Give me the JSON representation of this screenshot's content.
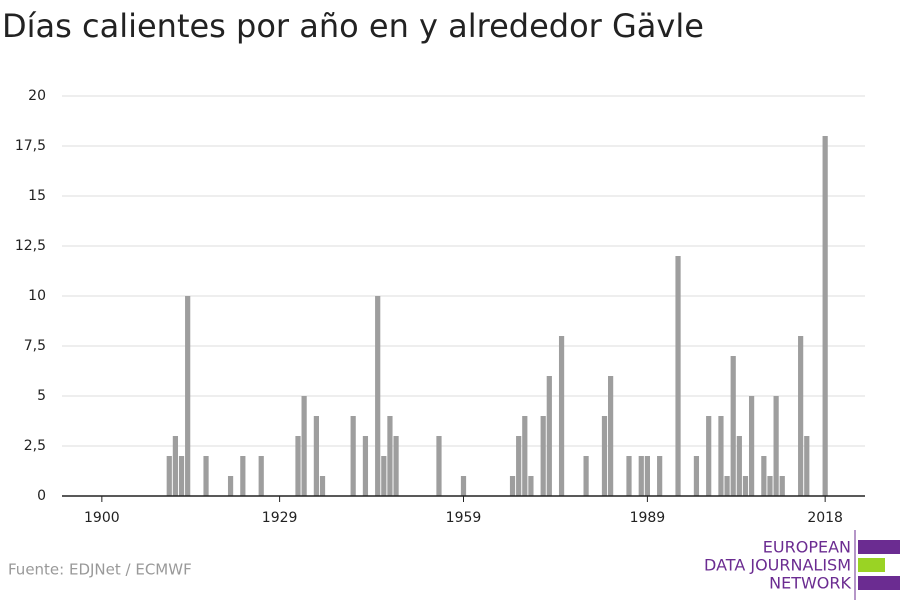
{
  "chart_data": {
    "type": "bar",
    "title": "Días calientes por año en y alrededor Gävle",
    "source": "Fuente: EDJNet / ECMWF",
    "logo": [
      "EUROPEAN",
      "DATA JOURNALISM",
      "NETWORK"
    ],
    "color": "#9e9e9e",
    "x": [
      1900,
      1901,
      1902,
      1903,
      1904,
      1905,
      1906,
      1907,
      1908,
      1909,
      1910,
      1911,
      1912,
      1913,
      1914,
      1915,
      1916,
      1917,
      1918,
      1919,
      1920,
      1921,
      1922,
      1923,
      1924,
      1925,
      1926,
      1927,
      1928,
      1929,
      1930,
      1931,
      1932,
      1933,
      1934,
      1935,
      1936,
      1937,
      1938,
      1939,
      1940,
      1941,
      1942,
      1943,
      1944,
      1945,
      1946,
      1947,
      1948,
      1949,
      1950,
      1951,
      1952,
      1953,
      1954,
      1955,
      1956,
      1957,
      1958,
      1959,
      1960,
      1961,
      1962,
      1963,
      1964,
      1965,
      1966,
      1967,
      1968,
      1969,
      1970,
      1971,
      1972,
      1973,
      1974,
      1975,
      1976,
      1977,
      1978,
      1979,
      1980,
      1981,
      1982,
      1983,
      1984,
      1985,
      1986,
      1987,
      1988,
      1989,
      1990,
      1991,
      1992,
      1993,
      1994,
      1995,
      1996,
      1997,
      1998,
      1999,
      2000,
      2001,
      2002,
      2003,
      2004,
      2005,
      2006,
      2007,
      2008,
      2009,
      2010,
      2011,
      2012,
      2013,
      2014,
      2015,
      2016,
      2017,
      2018
    ],
    "values": [
      0,
      0,
      0,
      0,
      0,
      0,
      0,
      0,
      0,
      0,
      0,
      2,
      3,
      2,
      10,
      0,
      0,
      2,
      0,
      0,
      0,
      1,
      0,
      2,
      0,
      0,
      2,
      0,
      0,
      0,
      0,
      0,
      3,
      5,
      0,
      4,
      1,
      0,
      0,
      0,
      0,
      4,
      0,
      3,
      0,
      10,
      2,
      4,
      3,
      0,
      0,
      0,
      0,
      0,
      0,
      3,
      0,
      0,
      0,
      1,
      0,
      0,
      0,
      0,
      0,
      0,
      0,
      1,
      3,
      4,
      1,
      0,
      4,
      6,
      0,
      8,
      0,
      0,
      0,
      2,
      0,
      0,
      4,
      6,
      0,
      0,
      2,
      0,
      2,
      2,
      0,
      2,
      0,
      0,
      12,
      0,
      0,
      2,
      0,
      4,
      0,
      4,
      1,
      7,
      3,
      1,
      5,
      0,
      2,
      1,
      5,
      1,
      0,
      0,
      8,
      3,
      0,
      0,
      18
    ],
    "xlim": [
      1893.5,
      2024.5
    ],
    "xticks": [
      1900,
      1929,
      1959,
      1989,
      2018
    ],
    "ylim": [
      0,
      20
    ],
    "yticks": [
      0,
      {
        "value": 2.5,
        "label": "2,5"
      },
      5,
      {
        "value": 7.5,
        "label": "7,5"
      },
      10,
      {
        "value": 12.5,
        "label": "12,5"
      },
      15,
      {
        "value": 17.5,
        "label": "17,5"
      },
      20
    ],
    "grid": true
  }
}
